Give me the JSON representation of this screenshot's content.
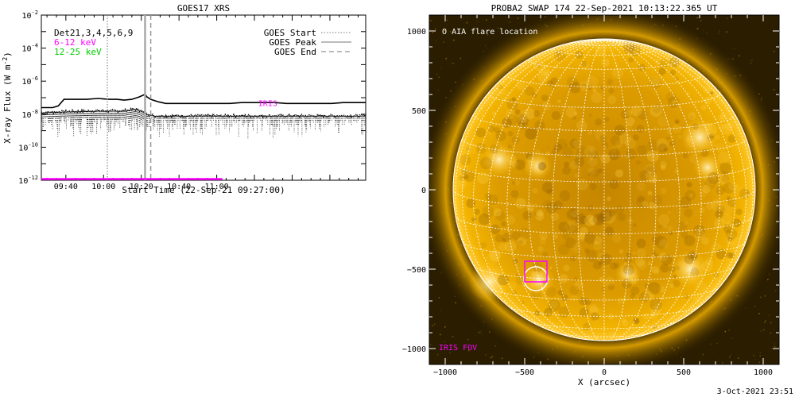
{
  "footer": {
    "timestamp": "3-Oct-2021 23:51"
  },
  "chart_data": [
    {
      "type": "line",
      "title": "GOES17 XRS",
      "xlabel": "Start Time (22-Sep-21 09:27:00)",
      "ylabel": "X-ray Flux (W m^-2)",
      "ylabel_main": "X-ray Flux (W m",
      "ylabel_sup": "-2",
      "ylabel_close": ")",
      "y_scale": "log",
      "ylim": [
        1e-12,
        0.01
      ],
      "xlim_minutes_since_0927": [
        0,
        172
      ],
      "xticks": [
        {
          "label": "09:40",
          "minute": 13
        },
        {
          "label": "10:00",
          "minute": 33
        },
        {
          "label": "10:20",
          "minute": 53
        },
        {
          "label": "10:40",
          "minute": 73
        },
        {
          "label": "11:00",
          "minute": 93
        }
      ],
      "yticks": [
        {
          "exp": -12,
          "base": "10",
          "sup": "-12"
        },
        {
          "exp": -10,
          "base": "10",
          "sup": "-10"
        },
        {
          "exp": -8,
          "base": "10",
          "sup": "-8"
        },
        {
          "exp": -6,
          "base": "10",
          "sup": "-6"
        },
        {
          "exp": -4,
          "base": "10",
          "sup": "-4"
        },
        {
          "exp": -2,
          "base": "10",
          "sup": "-2"
        }
      ],
      "legend_left": [
        {
          "label": "Det21,3,4,5,6,9",
          "color": "#000000"
        },
        {
          "label": "6-12 keV",
          "color": "#ff00ff"
        },
        {
          "label": "12-25 keV",
          "color": "#00cc00"
        }
      ],
      "legend_right": [
        {
          "label": "GOES Start",
          "style": "dotted"
        },
        {
          "label": "GOES Peak",
          "style": "solid"
        },
        {
          "label": "GOES End",
          "style": "dashed"
        }
      ],
      "events": {
        "start_minute": 35,
        "peak_minute": 55,
        "end_minute": 58
      },
      "iris_label": "IRIS",
      "iris_level_exp": -12,
      "iris_span_minutes": [
        0,
        96
      ],
      "series": [
        {
          "name": "long channel",
          "style": "solid",
          "color": "#000000",
          "x_min": [
            0,
            6,
            9,
            12,
            18,
            24,
            30,
            36,
            40,
            44,
            48,
            52,
            54,
            55,
            56,
            58,
            62,
            66,
            70,
            76,
            82,
            88,
            94,
            100,
            106,
            112,
            118,
            124,
            130,
            136,
            142,
            148,
            154,
            160,
            166,
            172
          ],
          "y_log": [
            -7.6,
            -7.6,
            -7.5,
            -7.1,
            -7.1,
            -7.1,
            -7.05,
            -7.1,
            -7.1,
            -7.15,
            -7.1,
            -6.95,
            -6.85,
            -6.8,
            -6.95,
            -7.1,
            -7.25,
            -7.35,
            -7.35,
            -7.35,
            -7.35,
            -7.35,
            -7.35,
            -7.35,
            -7.3,
            -7.3,
            -7.3,
            -7.3,
            -7.35,
            -7.35,
            -7.35,
            -7.35,
            -7.35,
            -7.3,
            -7.3,
            -7.3
          ]
        },
        {
          "name": "short channel",
          "style": "dotted",
          "color": "#000000",
          "base_log": -8.1,
          "noise_min_log": -9.5,
          "x_min": [
            0,
            12,
            30,
            44,
            50,
            52,
            55,
            60,
            172
          ],
          "y_log": [
            -7.9,
            -7.85,
            -7.8,
            -7.8,
            -7.7,
            -7.75,
            -7.95,
            -8.1,
            -8.1
          ]
        }
      ]
    },
    {
      "type": "image",
      "title": "PROBA2 SWAP 174 22-Sep-2021 10:13:22.365 UT",
      "xlabel": "X (arcsec)",
      "xlim": [
        -1100,
        1100
      ],
      "ylim": [
        -1100,
        1100
      ],
      "xticks": [
        -1000,
        -500,
        0,
        500,
        1000
      ],
      "yticks": [
        -1000,
        -500,
        0,
        500,
        1000
      ],
      "xtick_labels": [
        "−1000",
        "−500",
        "0",
        "500",
        "1000"
      ],
      "ytick_labels": [
        "−1000",
        "−500",
        "0",
        "500",
        "1000"
      ],
      "solar_radius_arcsec": 950,
      "legend": {
        "symbol": "O",
        "label": "AIA flare location"
      },
      "iris_fov_label": "IRIS FOV",
      "flare_location_arcsec": [
        -430,
        -560
      ],
      "flare_circle_radius_arcsec": 75,
      "iris_fov_box_arcsec": {
        "x": [
          -500,
          -360
        ],
        "y": [
          -580,
          -450
        ]
      },
      "grid_spacing_deg": 10,
      "colors": {
        "sun_outer": "#a36a00",
        "sun_mid": "#e8a400",
        "sun_inner": "#c98a00",
        "sky": "#221800",
        "grid": "#ffffff",
        "iris": "#ff00ff"
      },
      "bright_regions_arcsec": [
        {
          "x": -660,
          "y": 190,
          "r": 110
        },
        {
          "x": -420,
          "y": 150,
          "r": 90
        },
        {
          "x": 600,
          "y": 330,
          "r": 120
        },
        {
          "x": 650,
          "y": 140,
          "r": 90
        },
        {
          "x": -720,
          "y": -580,
          "r": 130
        },
        {
          "x": -410,
          "y": -570,
          "r": 100
        },
        {
          "x": 540,
          "y": -500,
          "r": 120
        },
        {
          "x": 150,
          "y": -530,
          "r": 80
        }
      ]
    }
  ]
}
